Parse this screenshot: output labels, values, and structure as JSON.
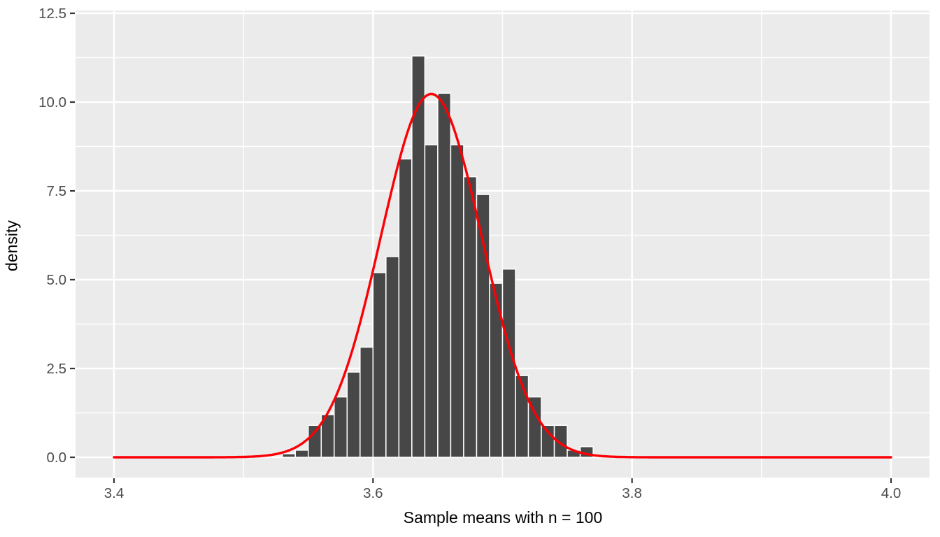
{
  "chart_data": {
    "type": "bar",
    "subtype": "histogram-with-density-curve",
    "title": "",
    "xlabel": "Sample means with n = 100",
    "ylabel": "density",
    "x_domain": [
      3.4,
      4.0
    ],
    "y_domain": [
      0,
      12.5
    ],
    "x_ticks": [
      3.4,
      3.6,
      3.8,
      4.0
    ],
    "y_ticks": [
      0.0,
      2.5,
      5.0,
      7.5,
      10.0,
      12.5
    ],
    "x_minor_gridlines": [
      3.5,
      3.7,
      3.9
    ],
    "y_minor_gridlines": [
      1.25,
      3.75,
      6.25,
      8.75,
      11.25
    ],
    "bin_width": 0.01,
    "bin_centers": [
      3.535,
      3.545,
      3.555,
      3.565,
      3.575,
      3.585,
      3.595,
      3.605,
      3.615,
      3.625,
      3.635,
      3.645,
      3.655,
      3.665,
      3.675,
      3.685,
      3.695,
      3.705,
      3.715,
      3.725,
      3.735,
      3.745,
      3.755,
      3.765
    ],
    "densities": [
      0.1,
      0.2,
      0.9,
      1.2,
      1.7,
      2.4,
      3.1,
      5.2,
      5.65,
      8.4,
      11.3,
      8.8,
      10.25,
      8.8,
      7.9,
      7.4,
      4.9,
      5.3,
      2.3,
      1.7,
      0.9,
      0.9,
      0.2,
      0.3
    ],
    "normal_curve": {
      "mean": 3.645,
      "sd": 0.039,
      "peak_density": 10.2,
      "x_start": 3.4,
      "x_end": 4.0
    },
    "legend": null,
    "grid": "on",
    "colors": {
      "panel_background": "#EBEBEB",
      "gridline": "#FFFFFF",
      "bar_fill": "#474747",
      "bar_border": "#FFFFFF",
      "curve": "#FB0006",
      "tick_mark": "#333333",
      "tick_label": "#4D4D4D",
      "axis_title": "#000000"
    }
  }
}
